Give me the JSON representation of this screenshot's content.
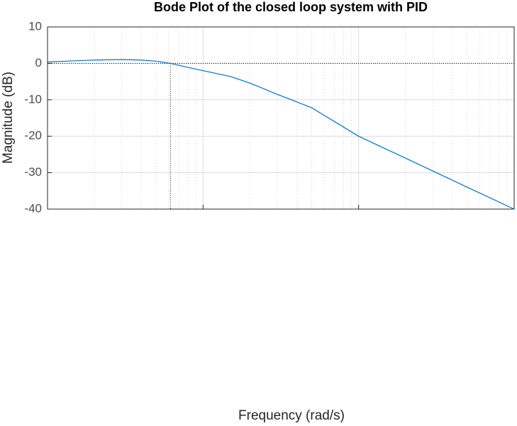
{
  "chart_data": {
    "type": "line",
    "title": "Bode Plot of the closed loop system with PID",
    "x_label": "Frequency  (rad/s)",
    "y_label": "Magnitude (dB)",
    "x": [
      0.1,
      0.15,
      0.2,
      0.3,
      0.4,
      0.5,
      0.617,
      0.8,
      1,
      1.5,
      2,
      3,
      5,
      10,
      20,
      50,
      100
    ],
    "values": [
      0.4,
      0.7,
      0.9,
      1.05,
      0.9,
      0.6,
      0,
      -1.1,
      -2,
      -3.6,
      -5.4,
      -8.5,
      -12.2,
      -20,
      -26,
      -34,
      -40
    ],
    "color": "#0072bd",
    "xlim": [
      0.1,
      100
    ],
    "xticks": [
      0.1,
      1,
      10,
      100
    ],
    "log_x": true,
    "ylim": [
      -40,
      10
    ],
    "yticks": [
      10,
      0,
      -10,
      -20,
      -30,
      -40
    ],
    "grid": true,
    "minor_grid": true,
    "reference_x": 0.617,
    "reference_y": 0
  }
}
